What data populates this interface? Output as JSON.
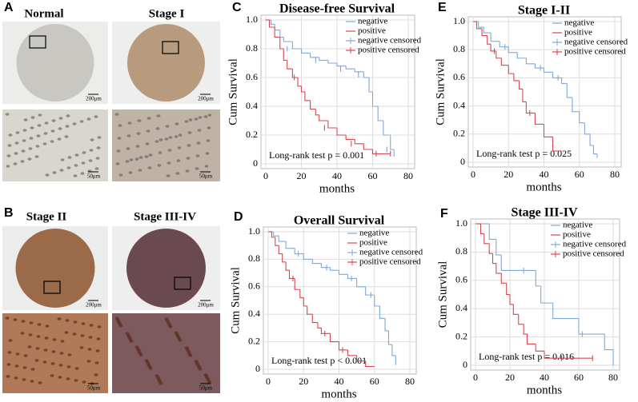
{
  "panel_labels": [
    "A",
    "B",
    "C",
    "D",
    "E",
    "F"
  ],
  "images": [
    {
      "label": "Normal",
      "scale": "200μm",
      "zoom_scale": "50μm"
    },
    {
      "label": "Stage I",
      "scale": "200μm",
      "zoom_scale": "50μm"
    },
    {
      "label": "Stage II",
      "scale": "200μm",
      "zoom_scale": "50μm"
    },
    {
      "label": "Stage III-IV",
      "scale": "200μm",
      "zoom_scale": "50μm"
    }
  ],
  "chart_data": [
    {
      "type": "step",
      "title": "Disease-free Survival",
      "x_label": "months",
      "y_label": "Cum Survival",
      "annotation": "Long-rank test p = 0.001",
      "xlim": [
        0,
        80
      ],
      "xticks": [
        0,
        20,
        40,
        60,
        80
      ],
      "ylim": [
        0,
        1
      ],
      "yticks": [
        0,
        0.2,
        0.4,
        0.6,
        0.8,
        {
          "value": 1,
          "label": "1.0"
        }
      ],
      "grid": true,
      "legend": "upper right",
      "series": [
        {
          "name": "negative",
          "color": "#7fa9d8",
          "style": "step",
          "x": [
            0,
            3,
            5,
            8,
            10,
            15,
            20,
            25,
            30,
            35,
            40,
            45,
            50,
            55,
            58,
            60,
            63,
            66,
            70,
            72
          ],
          "values": [
            1,
            0.97,
            0.93,
            0.88,
            0.85,
            0.8,
            0.77,
            0.74,
            0.72,
            0.7,
            0.68,
            0.66,
            0.64,
            0.6,
            0.5,
            0.4,
            0.3,
            0.2,
            0.1,
            0.05
          ]
        },
        {
          "name": "positive",
          "color": "#d9464f",
          "style": "step",
          "x": [
            0,
            2,
            5,
            8,
            10,
            12,
            15,
            18,
            20,
            22,
            25,
            28,
            30,
            35,
            40,
            45,
            50,
            55,
            60,
            65,
            70
          ],
          "values": [
            1,
            0.95,
            0.88,
            0.8,
            0.72,
            0.66,
            0.6,
            0.54,
            0.5,
            0.44,
            0.38,
            0.34,
            0.3,
            0.25,
            0.2,
            0.17,
            0.14,
            0.1,
            0.07,
            0.07,
            0.07
          ]
        },
        {
          "name": "negative censored",
          "color": "#7fa9d8",
          "style": "censor",
          "x": [
            12,
            28,
            42,
            52,
            68
          ],
          "values": [
            0.8,
            0.72,
            0.66,
            0.62,
            0.1
          ]
        },
        {
          "name": "positive censored",
          "color": "#d9464f",
          "style": "censor",
          "x": [
            16,
            33,
            48,
            62,
            70
          ],
          "values": [
            0.6,
            0.25,
            0.14,
            0.07,
            0.07
          ]
        }
      ]
    },
    {
      "type": "step",
      "title": "Overall Survival",
      "x_label": "months",
      "y_label": "Cum Survival",
      "annotation": "Long-rank test p < 0.001",
      "xlim": [
        0,
        80
      ],
      "xticks": [
        0,
        20,
        40,
        60,
        80
      ],
      "ylim": [
        0,
        1
      ],
      "yticks": [
        0,
        0.2,
        0.4,
        0.6,
        0.8,
        {
          "value": 1,
          "label": "1.0"
        }
      ],
      "grid": true,
      "legend": "upper right",
      "series": [
        {
          "name": "negative",
          "color": "#7fa9d8",
          "style": "step",
          "x": [
            0,
            3,
            6,
            10,
            15,
            20,
            25,
            30,
            35,
            40,
            45,
            50,
            55,
            60,
            63,
            66,
            68,
            70,
            72
          ],
          "values": [
            1,
            0.97,
            0.93,
            0.88,
            0.84,
            0.8,
            0.77,
            0.74,
            0.72,
            0.69,
            0.66,
            0.6,
            0.54,
            0.46,
            0.37,
            0.28,
            0.18,
            0.1,
            0.03
          ]
        },
        {
          "name": "positive",
          "color": "#d9464f",
          "style": "step",
          "x": [
            0,
            2,
            4,
            6,
            8,
            10,
            12,
            15,
            18,
            20,
            22,
            25,
            28,
            30,
            35,
            40,
            45,
            50,
            55,
            60
          ],
          "values": [
            1,
            0.96,
            0.9,
            0.84,
            0.78,
            0.72,
            0.66,
            0.58,
            0.52,
            0.46,
            0.4,
            0.34,
            0.3,
            0.26,
            0.2,
            0.14,
            0.1,
            0.06,
            0.02,
            0.02
          ]
        },
        {
          "name": "negative censored",
          "color": "#7fa9d8",
          "style": "censor",
          "x": [
            17,
            33,
            47,
            58
          ],
          "values": [
            0.84,
            0.74,
            0.66,
            0.54
          ]
        },
        {
          "name": "positive censored",
          "color": "#d9464f",
          "style": "censor",
          "x": [
            14,
            32,
            42
          ],
          "values": [
            0.66,
            0.26,
            0.14
          ]
        }
      ]
    },
    {
      "type": "step",
      "title": "Stage I-II",
      "x_label": "months",
      "y_label": "Cum Survival",
      "annotation": "Long-rank test p = 0.025",
      "xlim": [
        0,
        80
      ],
      "xticks": [
        0,
        20,
        40,
        60,
        80
      ],
      "ylim": [
        0,
        1
      ],
      "yticks": [
        0,
        0.2,
        0.4,
        0.6,
        0.8,
        {
          "value": 1,
          "label": "1.0"
        }
      ],
      "grid": true,
      "legend": "upper right",
      "series": [
        {
          "name": "negative",
          "color": "#7fa9d8",
          "style": "step",
          "x": [
            0,
            3,
            6,
            10,
            15,
            20,
            25,
            30,
            35,
            40,
            45,
            50,
            53,
            56,
            60,
            63,
            66,
            68,
            70
          ],
          "values": [
            1,
            0.96,
            0.92,
            0.86,
            0.82,
            0.78,
            0.74,
            0.7,
            0.67,
            0.64,
            0.6,
            0.56,
            0.46,
            0.36,
            0.28,
            0.2,
            0.12,
            0.06,
            0.03
          ]
        },
        {
          "name": "positive",
          "color": "#d9464f",
          "style": "step",
          "x": [
            0,
            2,
            5,
            8,
            10,
            13,
            16,
            20,
            23,
            26,
            28,
            30,
            35,
            40,
            45,
            50
          ],
          "values": [
            1,
            0.95,
            0.9,
            0.84,
            0.79,
            0.74,
            0.69,
            0.63,
            0.58,
            0.52,
            0.43,
            0.35,
            0.27,
            0.18,
            0.08,
            0.08
          ]
        },
        {
          "name": "negative censored",
          "color": "#7fa9d8",
          "style": "censor",
          "x": [
            18,
            38,
            48
          ],
          "values": [
            0.82,
            0.67,
            0.6
          ]
        },
        {
          "name": "positive censored",
          "color": "#d9464f",
          "style": "censor",
          "x": [
            12,
            32
          ],
          "values": [
            0.79,
            0.35
          ]
        }
      ]
    },
    {
      "type": "step",
      "title": "Stage III-IV",
      "x_label": "months",
      "y_label": "Cum Survival",
      "annotation": "Long-rank test p = 0.016",
      "xlim": [
        0,
        80
      ],
      "xticks": [
        0,
        20,
        40,
        60,
        80
      ],
      "ylim": [
        0,
        1
      ],
      "yticks": [
        0,
        0.2,
        0.4,
        0.6,
        0.8,
        {
          "value": 1,
          "label": "1.0"
        }
      ],
      "grid": true,
      "legend": "upper right",
      "series": [
        {
          "name": "negative",
          "color": "#7fa9d8",
          "style": "step",
          "x": [
            0,
            5,
            8,
            12,
            15,
            25,
            35,
            38,
            45,
            50,
            60,
            65,
            70,
            75,
            80
          ],
          "values": [
            1,
            1,
            0.89,
            0.78,
            0.67,
            0.67,
            0.56,
            0.44,
            0.33,
            0.33,
            0.22,
            0.22,
            0.22,
            0.11,
            0
          ]
        },
        {
          "name": "positive",
          "color": "#d9464f",
          "style": "step",
          "x": [
            0,
            3,
            5,
            8,
            10,
            12,
            15,
            18,
            20,
            22,
            25,
            28,
            30,
            35,
            40,
            45,
            68
          ],
          "values": [
            1,
            0.93,
            0.86,
            0.79,
            0.72,
            0.65,
            0.58,
            0.5,
            0.43,
            0.36,
            0.29,
            0.22,
            0.15,
            0.1,
            0.05,
            0.05,
            0.05
          ]
        },
        {
          "name": "negative censored",
          "color": "#7fa9d8",
          "style": "censor",
          "x": [
            28,
            62
          ],
          "values": [
            0.67,
            0.22
          ]
        },
        {
          "name": "positive censored",
          "color": "#d9464f",
          "style": "censor",
          "x": [
            50,
            68
          ],
          "values": [
            0.05,
            0.05
          ]
        }
      ]
    }
  ]
}
